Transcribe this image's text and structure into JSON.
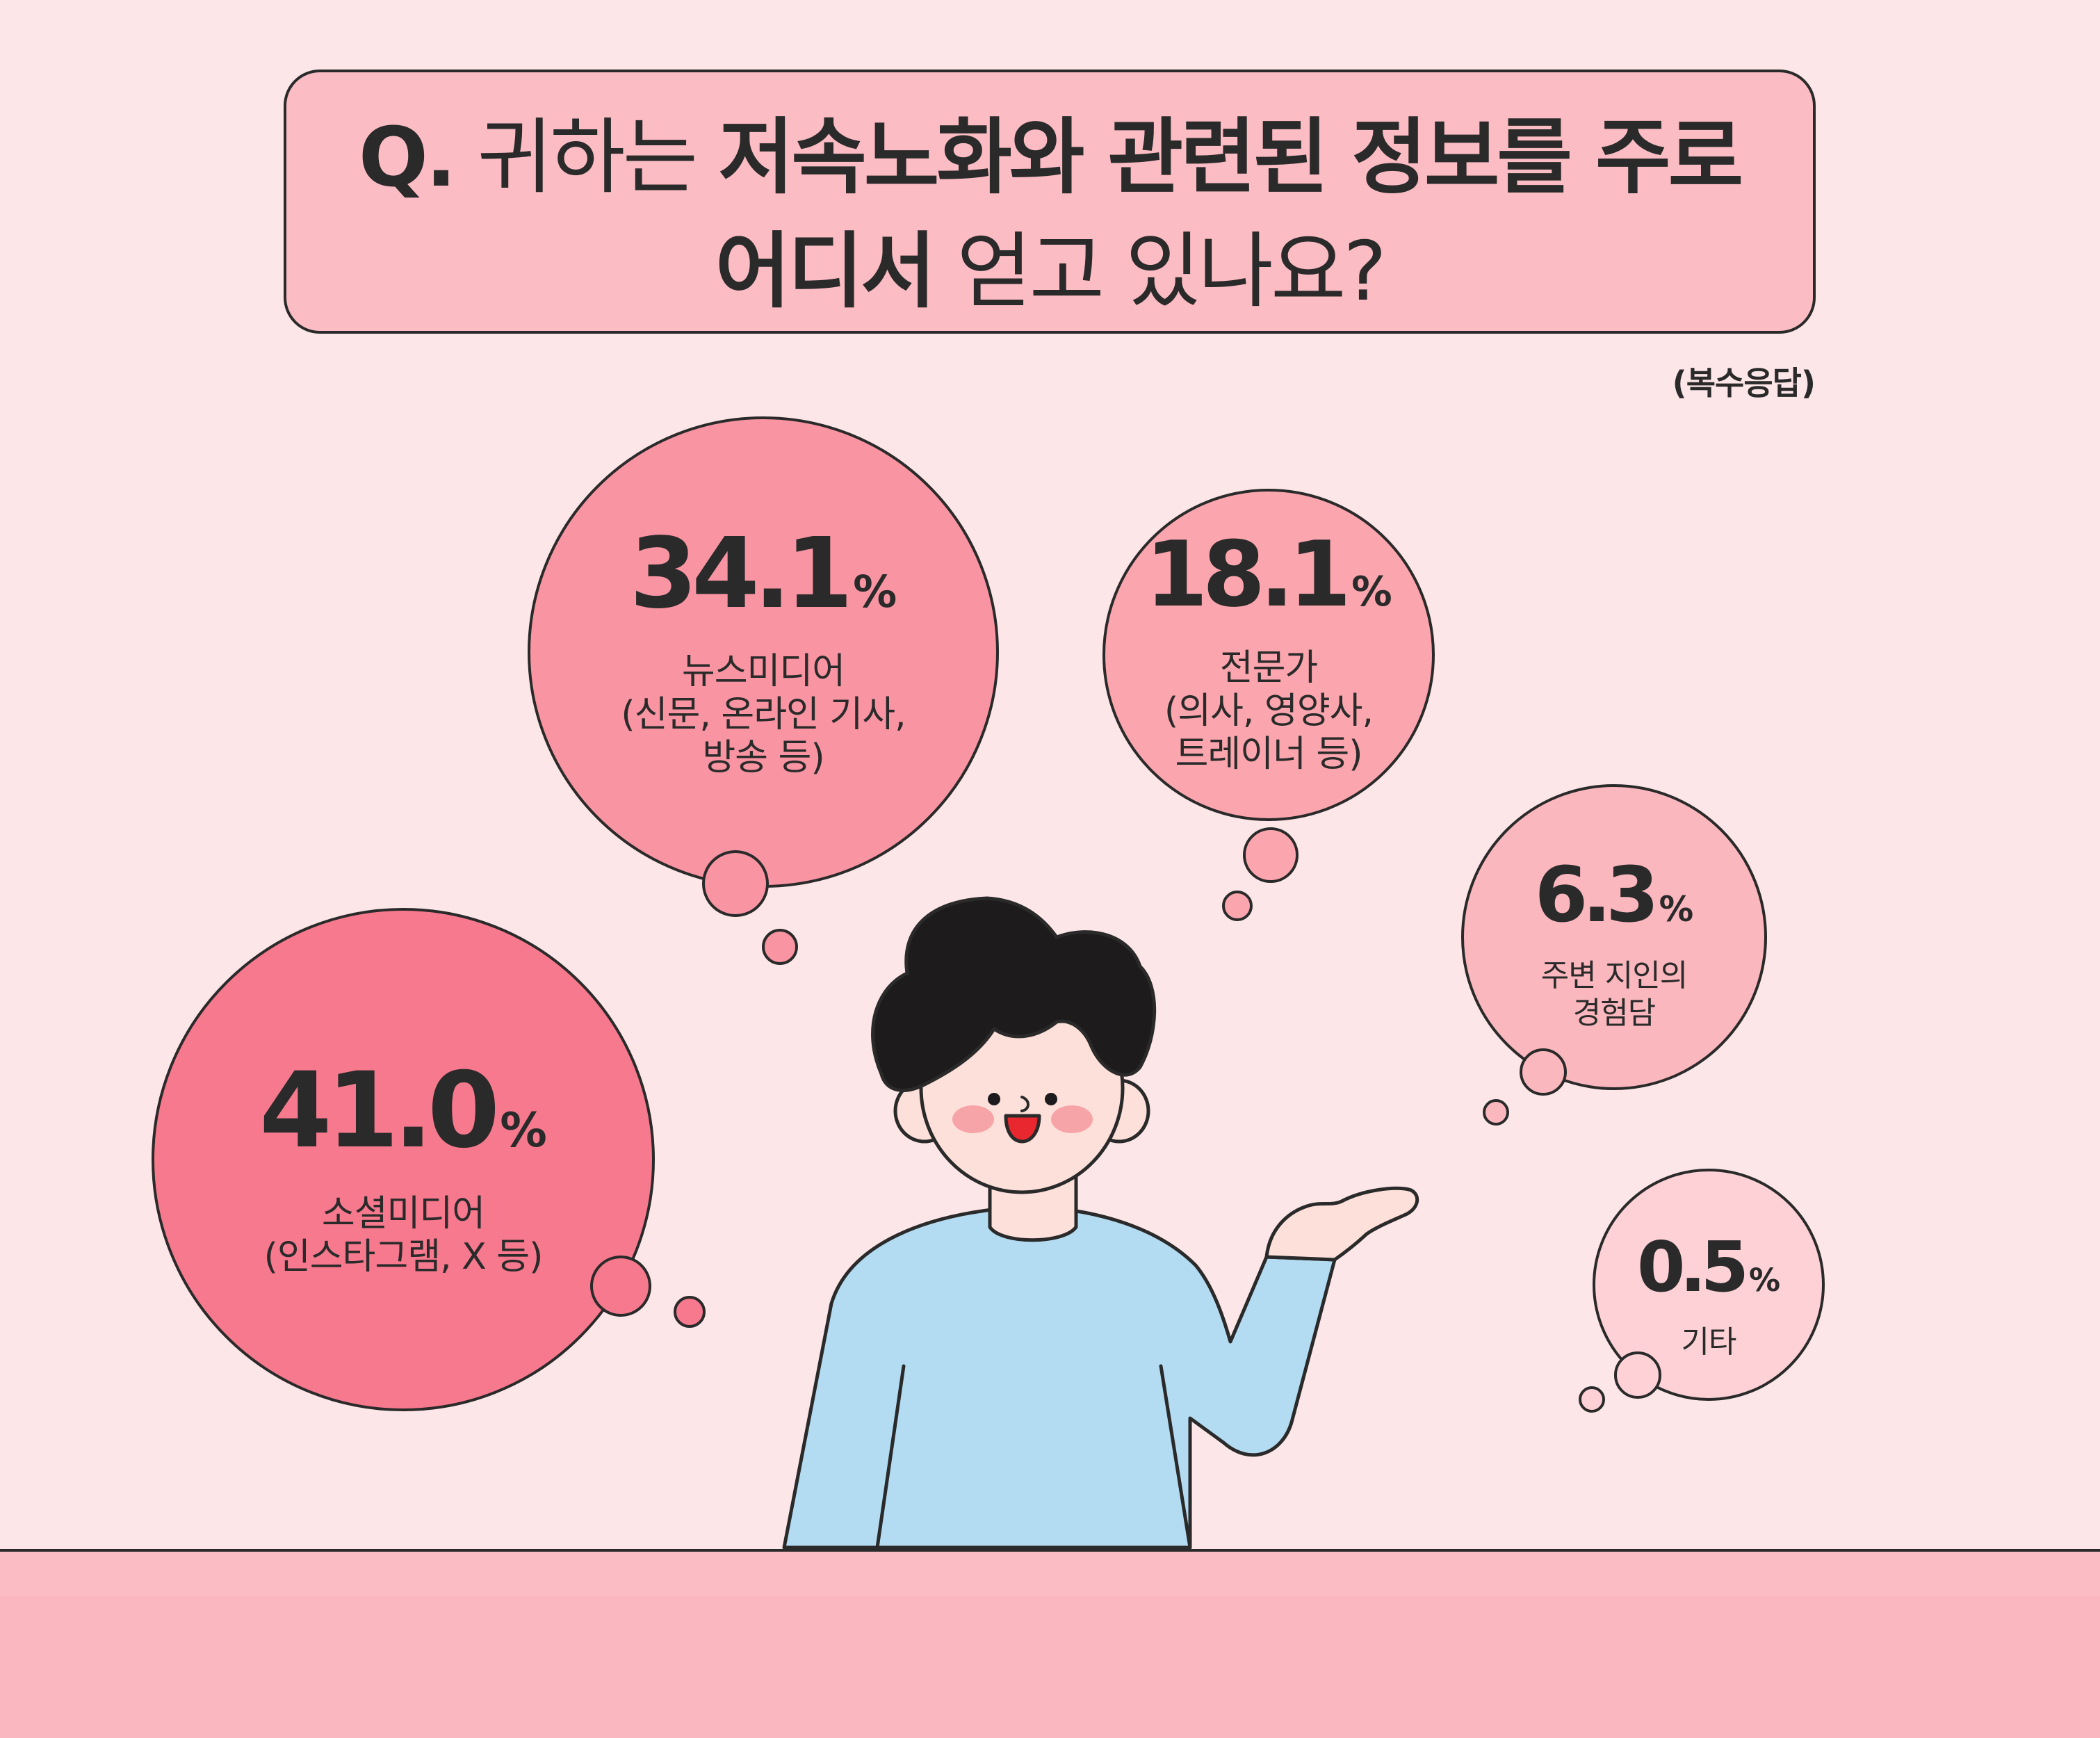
{
  "title": {
    "q_prefix": "Q.",
    "line1_light1": "귀하는",
    "line1_bold": "저속노화와 관련된 정보를 주로",
    "line2_bold": "어디서",
    "line2_light": "얻고 있나요?"
  },
  "note": "(복수응답)",
  "chart_data": {
    "type": "bubble",
    "title": "Q. 귀하는 저속노화와 관련된 정보를 주로 어디서 얻고 있나요?",
    "note": "(복수응답)",
    "unit": "%",
    "items": [
      {
        "id": "social",
        "value": 41.0,
        "label_display": "41.0",
        "category_lines": [
          "소셜미디어",
          "(인스타그램, X 등)"
        ],
        "color": "#f7798e"
      },
      {
        "id": "news",
        "value": 34.1,
        "label_display": "34.1",
        "category_lines": [
          "뉴스미디어",
          "(신문, 온라인 기사,",
          "방송 등)"
        ],
        "color": "#f995a3"
      },
      {
        "id": "expert",
        "value": 18.1,
        "label_display": "18.1",
        "category_lines": [
          "전문가",
          "(의사, 영양사,",
          "트레이너 등)"
        ],
        "color": "#fba6ae"
      },
      {
        "id": "acquaint",
        "value": 6.3,
        "label_display": "6.3",
        "category_lines": [
          "주변 지인의",
          "경험담"
        ],
        "color": "#fbb7be"
      },
      {
        "id": "other",
        "value": 0.5,
        "label_display": "0.5",
        "category_lines": [
          "기타"
        ],
        "color": "#fdd1d6"
      }
    ]
  },
  "colors": {
    "background": "#fde6e8",
    "title_box": "#fbbcc3",
    "outline": "#2a2a2a",
    "shirt": "#b3dcf2",
    "skin": "#fde0d9",
    "hair": "#1d1b1c",
    "cheek": "#f7a4a8",
    "mouth": "#e8272f",
    "floor": "#fbbcc3"
  },
  "icons": {
    "character": "person-thinking-illustration"
  }
}
